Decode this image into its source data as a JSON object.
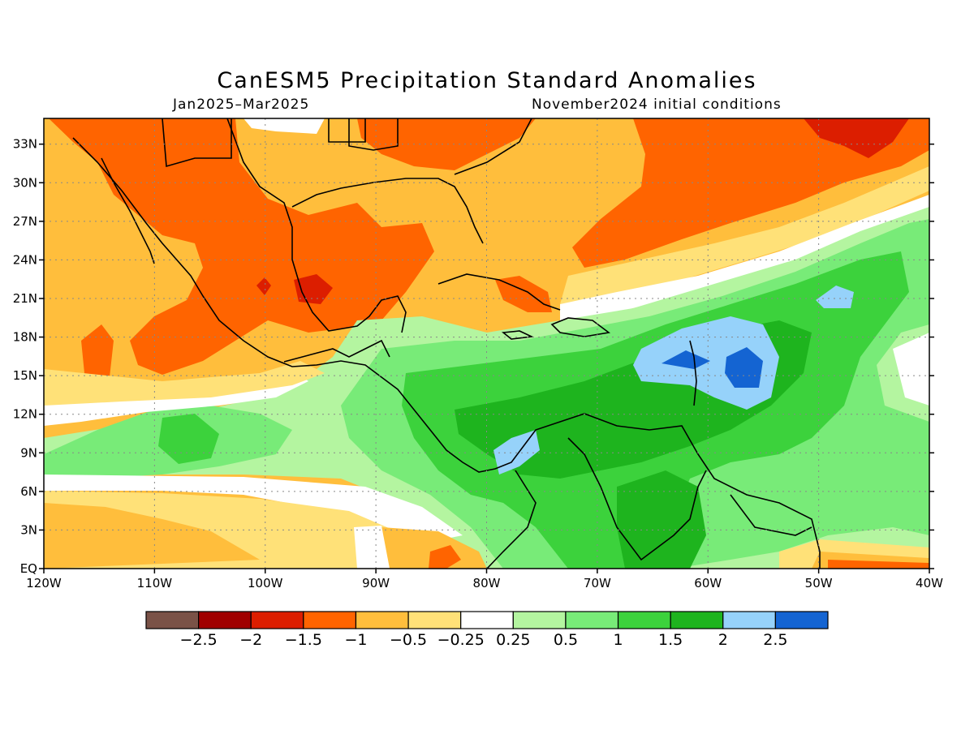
{
  "title": "CanESM5 Precipitation Standard Anomalies",
  "subtitle_left": "Jan2025–Mar2025",
  "subtitle_right": "November2024 initial conditions",
  "map": {
    "lon_range": [
      -120,
      -40
    ],
    "lat_range": [
      0,
      35
    ],
    "lon_ticks": [
      {
        "value": -120,
        "label": "120W"
      },
      {
        "value": -110,
        "label": "110W"
      },
      {
        "value": -100,
        "label": "100W"
      },
      {
        "value": -90,
        "label": "90W"
      },
      {
        "value": -80,
        "label": "80W"
      },
      {
        "value": -70,
        "label": "70W"
      },
      {
        "value": -60,
        "label": "60W"
      },
      {
        "value": -50,
        "label": "50W"
      },
      {
        "value": -40,
        "label": "40W"
      }
    ],
    "lat_ticks": [
      {
        "value": 0,
        "label": "EQ"
      },
      {
        "value": 3,
        "label": "3N"
      },
      {
        "value": 6,
        "label": "6N"
      },
      {
        "value": 9,
        "label": "9N"
      },
      {
        "value": 12,
        "label": "12N"
      },
      {
        "value": 15,
        "label": "15N"
      },
      {
        "value": 18,
        "label": "18N"
      },
      {
        "value": 21,
        "label": "21N"
      },
      {
        "value": 24,
        "label": "24N"
      },
      {
        "value": 27,
        "label": "27N"
      },
      {
        "value": 30,
        "label": "30N"
      },
      {
        "value": 33,
        "label": "33N"
      }
    ],
    "grid": "dotted"
  },
  "colorbar": {
    "colors": [
      "#7a5247",
      "#a00000",
      "#dc1e00",
      "#ff6400",
      "#ffbe3c",
      "#ffe178",
      "#ffffff",
      "#b4f5a0",
      "#78eb78",
      "#3cd23c",
      "#1eb41e",
      "#96d2fa",
      "#1464d2"
    ],
    "labels": [
      "−2.5",
      "−2",
      "−1.5",
      "−1",
      "−0.5",
      "−0.25",
      "0.25",
      "0.5",
      "1",
      "1.5",
      "2",
      "2.5"
    ]
  },
  "colors": {
    "background_field": "#ffbe3c",
    "coastline": "#000000"
  }
}
